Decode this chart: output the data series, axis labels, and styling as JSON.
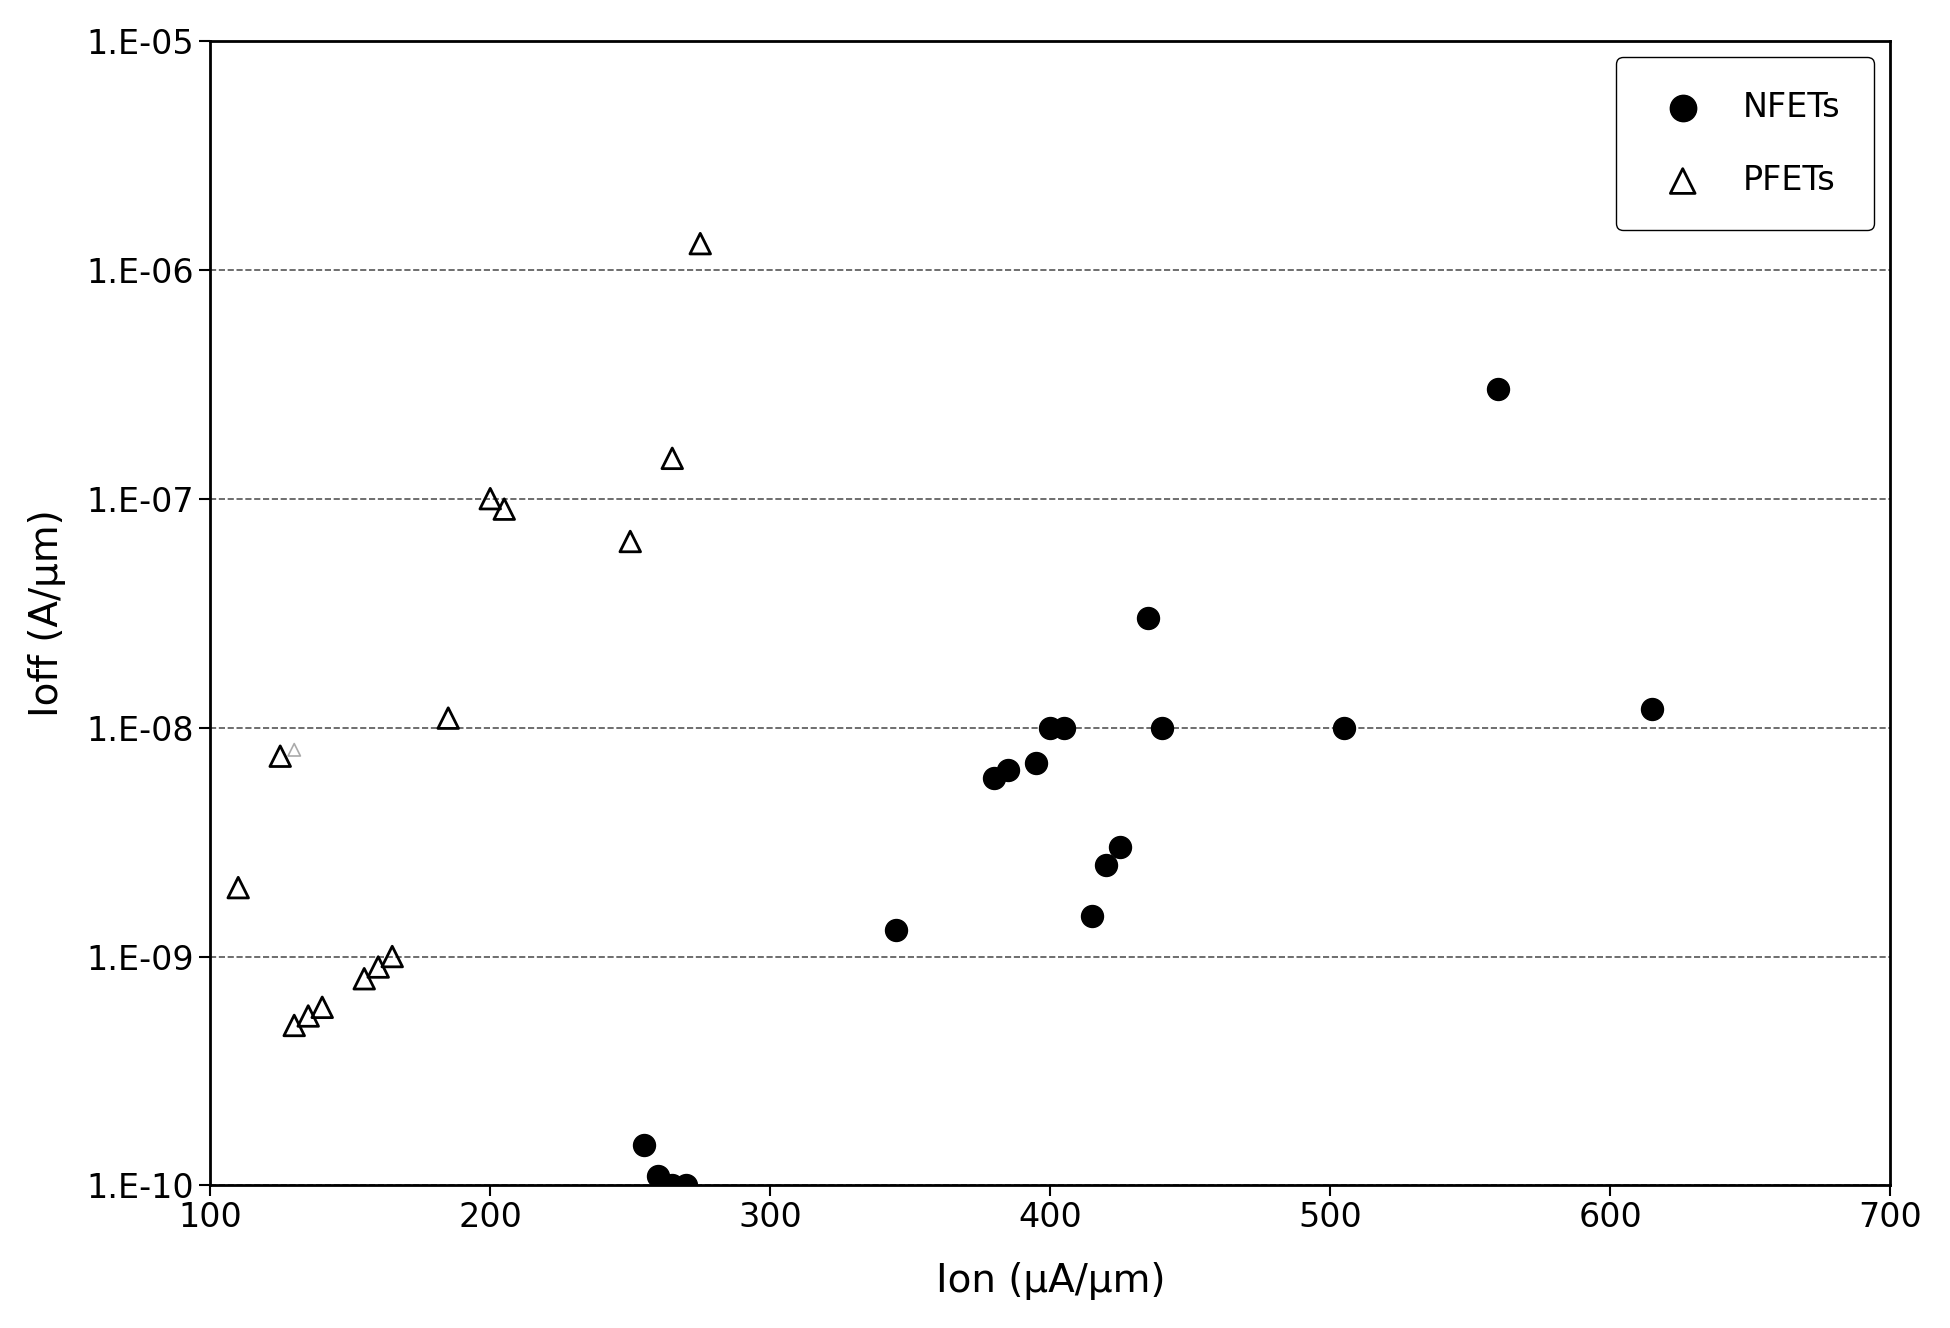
{
  "title": "",
  "xlabel": "Ion (μA/μm)",
  "ylabel": "Ioff (A/μm)",
  "xlim": [
    100,
    700
  ],
  "xticks": [
    100,
    200,
    300,
    400,
    500,
    600,
    700
  ],
  "yticks": [
    1e-10,
    1e-09,
    1e-08,
    1e-07,
    1e-06,
    1e-05
  ],
  "ytick_labels": [
    "1.E-10",
    "1.E-09",
    "1.E-08",
    "1.E-07",
    "1.E-06",
    "1.E-05"
  ],
  "nfet_x": [
    255,
    260,
    265,
    270,
    345,
    380,
    385,
    395,
    400,
    405,
    415,
    420,
    425,
    435,
    440,
    505,
    560,
    615
  ],
  "nfet_y": [
    1.5e-10,
    1.1e-10,
    1e-10,
    1e-10,
    1.3e-09,
    6e-09,
    6.5e-09,
    7e-09,
    1e-08,
    1e-08,
    1.5e-09,
    2.5e-09,
    3e-09,
    3e-08,
    1e-08,
    1e-08,
    3e-07,
    1.2e-08
  ],
  "pfet_x": [
    110,
    125,
    130,
    135,
    140,
    155,
    160,
    165,
    185,
    200,
    205,
    250,
    265,
    275
  ],
  "pfet_y": [
    2e-09,
    7.5e-09,
    5e-10,
    5.5e-10,
    6e-10,
    8e-10,
    9e-10,
    1e-09,
    1.1e-08,
    1e-07,
    9e-08,
    6.5e-08,
    1.5e-07,
    1.3e-06
  ],
  "pfet_small_x": [
    130
  ],
  "pfet_small_y": [
    8e-09
  ],
  "background_color": "#ffffff",
  "marker_color_nfet": "#000000",
  "marker_color_pfet": "#000000",
  "grid_color": "#555555",
  "legend_fontsize": 24,
  "axis_label_fontsize": 28,
  "tick_fontsize": 24,
  "marker_size_nfet": 250,
  "marker_size_pfet": 220,
  "marker_size_pfet_small": 80
}
